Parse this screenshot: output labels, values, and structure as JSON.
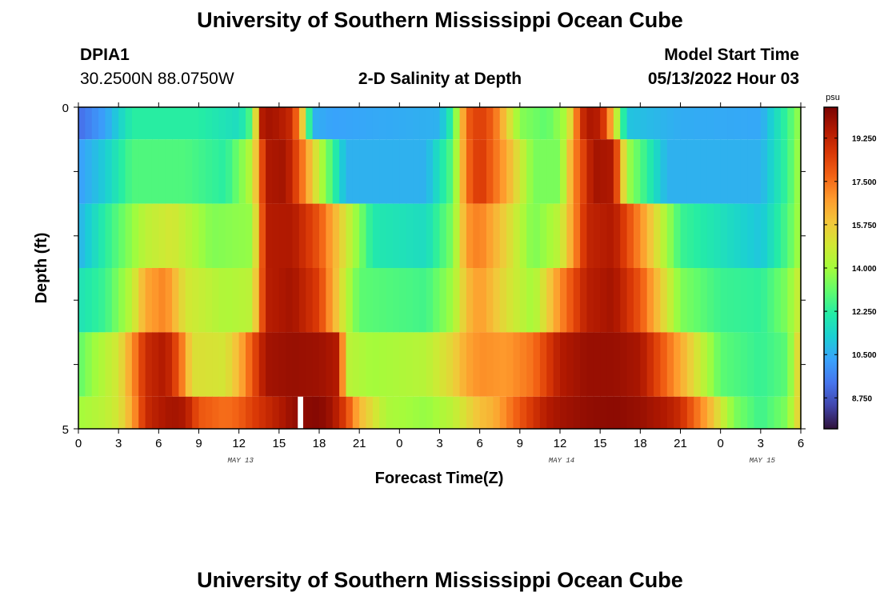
{
  "header": {
    "title": "University of Southern Mississippi Ocean Cube",
    "station": "DPIA1",
    "coords": "30.2500N  88.0750W",
    "subtitle": "2-D Salinity at Depth",
    "model_label": "Model Start Time",
    "model_time": "05/13/2022 Hour 03"
  },
  "footer": {
    "title": "University of Southern Mississippi Ocean Cube"
  },
  "colors": {
    "scale": [
      "#30123b",
      "#4145ab",
      "#4675ed",
      "#39a2fc",
      "#1bcfd4",
      "#24eca6",
      "#61fc6c",
      "#a4fc3b",
      "#d1e834",
      "#f3c63a",
      "#fe9b2d",
      "#f36315",
      "#d93806",
      "#b11901",
      "#7a0403"
    ]
  },
  "chart_data": {
    "type": "heatmap",
    "title": "2-D Salinity at Depth",
    "xlabel": "Forecast Time(Z)",
    "ylabel": "Depth (ft)",
    "x_hours": [
      0,
      54
    ],
    "x_tick_labels": [
      "0",
      "3",
      "6",
      "9",
      "12",
      "15",
      "18",
      "21",
      "0",
      "3",
      "6",
      "9",
      "12",
      "15",
      "18",
      "21",
      "0",
      "3",
      "6"
    ],
    "date_labels": [
      {
        "hour": 12,
        "text": "MAY 13"
      },
      {
        "hour": 36,
        "text": "MAY 14"
      },
      {
        "hour": 51,
        "text": "MAY 15"
      }
    ],
    "ylim": [
      0,
      5
    ],
    "y_tick_labels": [
      "0",
      "5"
    ],
    "colorbar": {
      "unit": "psu",
      "range": [
        7.5,
        20.5
      ],
      "tick_values": [
        8.75,
        10.5,
        12.25,
        14.0,
        15.75,
        17.5,
        19.25
      ],
      "tick_labels": [
        "8.750",
        "10.500",
        "12.250",
        "14.000",
        "15.750",
        "17.500",
        "19.250"
      ]
    },
    "missing_data": [
      {
        "hour_start": 16.4,
        "hour_end": 16.8,
        "depth_start": 4.5,
        "depth_end": 5
      }
    ],
    "depth_layers": [
      {
        "depth": [
          0,
          0.5
        ],
        "key_hours": [
          0,
          2,
          4,
          9,
          12,
          13,
          13.7,
          14.3,
          15,
          16,
          16.8,
          17.5,
          19,
          27,
          28,
          29,
          30,
          31,
          33,
          35,
          36.5,
          37.5,
          38,
          39,
          39.5,
          41,
          45,
          51,
          53,
          54
        ],
        "key_values": [
          9.2,
          10.3,
          12.2,
          12.2,
          11.6,
          13,
          19.5,
          19.8,
          19.6,
          19,
          15.5,
          10.6,
          10.3,
          10.6,
          12.5,
          17.8,
          18.6,
          17.8,
          13.6,
          13,
          14.2,
          18.5,
          19.7,
          19.4,
          18,
          11,
          10.5,
          10.4,
          12.5,
          14
        ]
      },
      {
        "depth": [
          0.5,
          1.5
        ],
        "key_hours": [
          0,
          2,
          4,
          8,
          11,
          13,
          14,
          15.5,
          16.5,
          18,
          20,
          26,
          28,
          29,
          30,
          32,
          34,
          36,
          37,
          38.5,
          40,
          41,
          44,
          51,
          53,
          54
        ],
        "key_values": [
          10.2,
          11.2,
          12.8,
          12.8,
          12.2,
          14.5,
          19.6,
          19.8,
          18,
          14.5,
          10.6,
          10.6,
          13,
          17.5,
          18.8,
          16.5,
          13.4,
          13.4,
          17,
          19.8,
          19.6,
          14,
          10.6,
          10.6,
          12.5,
          14.2
        ]
      },
      {
        "depth": [
          1.5,
          2.5
        ],
        "key_hours": [
          0,
          2,
          5,
          7,
          10,
          13,
          14,
          16,
          18,
          20,
          22,
          26,
          28,
          29,
          30,
          32,
          34,
          36,
          38,
          40,
          42,
          45,
          51,
          53,
          54
        ],
        "key_values": [
          10.6,
          12.2,
          14.5,
          15,
          13.5,
          13.8,
          19.5,
          19.6,
          18,
          15,
          12,
          11.6,
          13.5,
          16.8,
          17.3,
          15.5,
          13.4,
          14.5,
          19.2,
          19.6,
          17,
          12.5,
          11,
          12.8,
          14.2
        ]
      },
      {
        "depth": [
          2.5,
          3.5
        ],
        "key_hours": [
          0,
          2,
          4,
          5,
          6.5,
          8,
          11,
          13,
          14,
          16,
          18,
          19,
          20,
          21,
          26,
          28,
          29,
          30,
          32,
          34,
          36,
          38,
          40,
          42,
          45,
          48,
          51,
          53,
          54
        ],
        "key_values": [
          11.8,
          12.5,
          14.5,
          16.5,
          17.2,
          15,
          14.2,
          14.5,
          19.4,
          19.8,
          18.5,
          16.5,
          14.5,
          13,
          12.6,
          14,
          16,
          16.8,
          15.2,
          14,
          17,
          19.4,
          19.8,
          18,
          13.5,
          12.5,
          12.3,
          13.5,
          15
        ]
      },
      {
        "depth": [
          3.5,
          4.5
        ],
        "key_hours": [
          0,
          1,
          3,
          4,
          5,
          6.5,
          7.5,
          8.5,
          11,
          12,
          13,
          14,
          16,
          18,
          19.5,
          20,
          22,
          26,
          28,
          29,
          30,
          32,
          34,
          36,
          38,
          40,
          42,
          45,
          48,
          51,
          53,
          54
        ],
        "key_values": [
          13,
          13.8,
          15,
          16.8,
          19,
          19.6,
          18,
          15.2,
          15,
          16.2,
          18,
          19.8,
          20,
          19.9,
          19.5,
          14.5,
          14,
          14.4,
          15.5,
          16.5,
          17,
          16.8,
          17.5,
          19.5,
          20,
          20,
          19.7,
          16.5,
          13,
          12.4,
          13,
          16
        ]
      },
      {
        "depth": [
          4.5,
          5.0
        ],
        "key_hours": [
          0,
          2,
          3,
          4,
          5,
          6,
          7,
          8,
          9,
          11,
          12,
          13,
          14,
          15,
          16,
          17,
          18,
          19,
          20,
          21,
          23,
          26,
          28,
          29,
          30,
          31,
          33,
          35,
          36,
          38,
          40,
          42,
          44,
          45,
          47,
          49,
          51,
          53,
          54
        ],
        "key_values": [
          14,
          14.5,
          15,
          16.5,
          19,
          19.5,
          19.8,
          19.6,
          18,
          17.5,
          17.8,
          18.5,
          19,
          19.5,
          20,
          20.2,
          20.3,
          19.8,
          18.4,
          16.2,
          14.2,
          13.8,
          14.5,
          15.3,
          16,
          16.3,
          18,
          19.5,
          19.8,
          20.1,
          20.2,
          20,
          19.5,
          19,
          16.5,
          13.5,
          12.5,
          13.5,
          16
        ]
      }
    ]
  }
}
